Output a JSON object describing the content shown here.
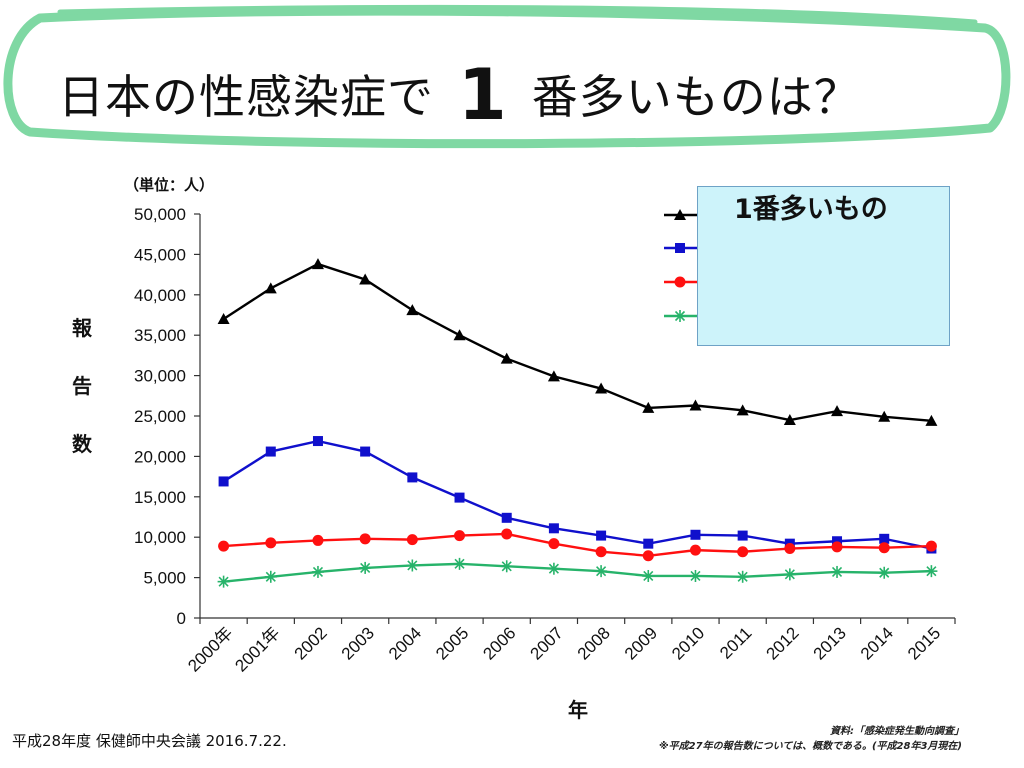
{
  "header": {
    "title_prefix": "日本の性感染症で",
    "title_number": "1",
    "title_suffix": "番多いものは？"
  },
  "legend": {
    "title": "1番多いもの"
  },
  "footer": {
    "source": "平成28年度 保健師中央会議 2016.7.22.",
    "note_source": "資料:「感染症発生動向調査」",
    "note_footnote": "※平成27年の報告数については、概数である。(平成28年3月現在)"
  },
  "chart_data": {
    "type": "line",
    "title": "",
    "unit_label": "（単位：人）",
    "xlabel": "年",
    "ylabel": "報告数",
    "ylim": [
      0,
      50000
    ],
    "yticks": [
      0,
      5000,
      10000,
      15000,
      20000,
      25000,
      30000,
      35000,
      40000,
      45000,
      50000
    ],
    "ytick_labels": [
      "0",
      "5,000",
      "10,000",
      "15,000",
      "20,000",
      "25,000",
      "30,000",
      "35,000",
      "40,000",
      "45,000",
      "50,000"
    ],
    "categories": [
      "2000年",
      "2001年",
      "2002",
      "2003",
      "2004",
      "2005",
      "2006",
      "2007",
      "2008",
      "2009",
      "2010",
      "2011",
      "2012",
      "2013",
      "2014",
      "2015"
    ],
    "series": [
      {
        "name": "",
        "color": "#000000",
        "marker": "triangle",
        "values": [
          37000,
          40800,
          43800,
          41900,
          38100,
          35000,
          32100,
          29900,
          28400,
          26000,
          26300,
          25700,
          24500,
          25600,
          24900,
          24400
        ]
      },
      {
        "name": "",
        "color": "#1010cc",
        "marker": "square",
        "values": [
          16900,
          20600,
          21900,
          20600,
          17400,
          14900,
          12400,
          11100,
          10200,
          9200,
          10300,
          10200,
          9200,
          9500,
          9800,
          8600
        ]
      },
      {
        "name": "",
        "color": "#ff1010",
        "marker": "circle",
        "values": [
          8900,
          9300,
          9600,
          9800,
          9700,
          10200,
          10400,
          9200,
          8200,
          7700,
          8400,
          8200,
          8600,
          8800,
          8700,
          8900
        ]
      },
      {
        "name": "",
        "color": "#27b36a",
        "marker": "star",
        "values": [
          4500,
          5100,
          5700,
          6200,
          6500,
          6700,
          6400,
          6100,
          5800,
          5200,
          5200,
          5100,
          5400,
          5700,
          5600,
          5800
        ]
      }
    ]
  }
}
